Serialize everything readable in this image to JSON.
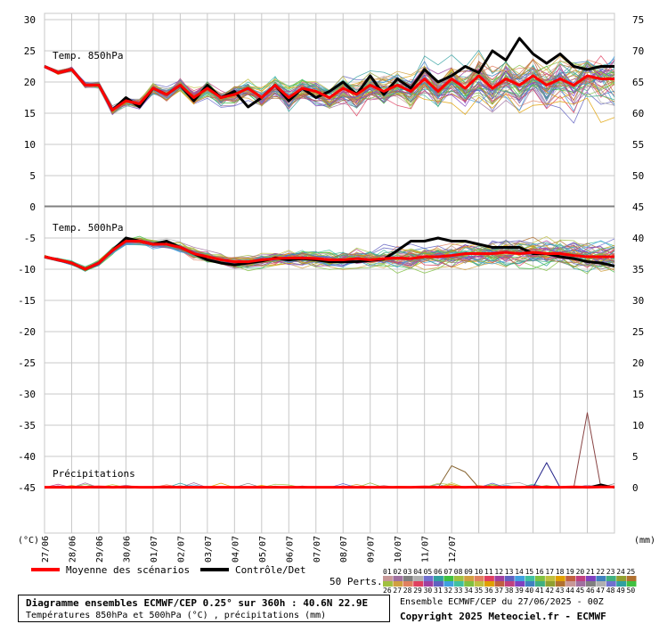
{
  "chart_data": {
    "type": "line",
    "x_labels": [
      "27/06",
      "28/06",
      "29/06",
      "30/06",
      "01/07",
      "02/07",
      "03/07",
      "04/07",
      "05/07",
      "06/07",
      "07/07",
      "08/07",
      "09/07",
      "10/07",
      "11/07",
      "12/07"
    ],
    "axis_unit_left": "(°C)",
    "axis_unit_right": "(mm)",
    "panels": [
      {
        "title": "Temp. 850hPa",
        "left_ticks": [
          30,
          25,
          20,
          15,
          10,
          5,
          0
        ],
        "right_ticks": [
          75,
          70,
          65,
          60,
          55,
          50
        ],
        "ylim": [
          0,
          30
        ],
        "series": [
          {
            "name": "Moyenne des scénarios",
            "color": "#ff0000",
            "values": [
              22.5,
              21.5,
              22.0,
              19.5,
              19.5,
              15.5,
              17.0,
              16.5,
              19.0,
              18.0,
              19.5,
              17.5,
              19.0,
              17.5,
              18.0,
              19.0,
              17.5,
              19.5,
              17.5,
              19.0,
              18.5,
              17.5,
              19.0,
              18.0,
              19.5,
              18.5,
              19.5,
              18.5,
              20.5,
              18.5,
              20.5,
              19.0,
              21.0,
              19.0,
              20.5,
              19.5,
              21.0,
              19.5,
              20.5,
              19.5,
              21.0,
              20.5,
              20.5
            ]
          },
          {
            "name": "Contrôle/Det",
            "color": "#000000",
            "values": [
              22.5,
              21.5,
              22.0,
              19.5,
              19.5,
              15.5,
              17.5,
              16.0,
              19.0,
              18.0,
              19.5,
              17.0,
              19.5,
              17.5,
              18.5,
              16.0,
              17.5,
              19.5,
              17.0,
              19.0,
              17.5,
              18.5,
              20.0,
              18.0,
              21.0,
              18.0,
              20.5,
              19.0,
              22.0,
              20.0,
              21.0,
              22.5,
              21.5,
              25.0,
              23.5,
              27.0,
              24.5,
              23.0,
              24.5,
              22.5,
              22.0,
              22.5,
              22.5
            ]
          }
        ]
      },
      {
        "title": "Temp. 500hPa",
        "left_ticks": [
          -5,
          -10,
          -15,
          -20,
          -25,
          -30,
          -35,
          -40,
          -45
        ],
        "right_ticks": [
          45,
          40,
          35,
          30,
          25,
          20,
          15,
          10,
          5,
          0
        ],
        "ylim": [
          -45,
          0
        ],
        "series": [
          {
            "name": "Moyenne des scénarios",
            "color": "#ff0000",
            "values": [
              -8.0,
              -8.5,
              -9.0,
              -10.0,
              -9.0,
              -7.0,
              -5.5,
              -5.5,
              -6.0,
              -6.0,
              -6.5,
              -7.5,
              -8.0,
              -8.5,
              -8.8,
              -8.8,
              -8.5,
              -8.3,
              -8.2,
              -8.2,
              -8.3,
              -8.5,
              -8.5,
              -8.3,
              -8.5,
              -8.3,
              -8.2,
              -8.3,
              -8.0,
              -8.0,
              -7.8,
              -7.5,
              -7.5,
              -7.5,
              -7.3,
              -7.5,
              -7.3,
              -7.5,
              -7.5,
              -7.8,
              -8.0,
              -8.0,
              -8.0
            ]
          },
          {
            "name": "Contrôle/Det",
            "color": "#000000",
            "values": [
              -8.0,
              -8.5,
              -9.0,
              -10.0,
              -9.0,
              -7.0,
              -5.0,
              -5.5,
              -6.0,
              -5.5,
              -6.5,
              -7.5,
              -8.5,
              -9.0,
              -9.3,
              -9.0,
              -8.7,
              -8.2,
              -8.5,
              -8.3,
              -8.5,
              -8.8,
              -8.8,
              -8.8,
              -8.6,
              -8.4,
              -7.0,
              -5.5,
              -5.5,
              -5.0,
              -5.5,
              -5.5,
              -6.0,
              -6.5,
              -6.5,
              -6.5,
              -7.5,
              -7.5,
              -8.0,
              -8.3,
              -8.8,
              -9.0,
              -9.5
            ]
          }
        ]
      },
      {
        "title": "Précipitations",
        "right_ticks": [
          15,
          10,
          5,
          0
        ],
        "ylim": [
          0,
          16
        ],
        "series": [
          {
            "name": "Moyenne des scénarios",
            "color": "#ff0000",
            "values": [
              0.05,
              0.05,
              0.05,
              0.05,
              0.1,
              0.05,
              0.1,
              0.05,
              0.05,
              0.1,
              0.05,
              0.05,
              0.05,
              0.05,
              0.05,
              0.05,
              0.05,
              0.05,
              0.05,
              0.05,
              0.05,
              0.05,
              0.05,
              0.05,
              0.05,
              0.05,
              0.05,
              0.05,
              0.1,
              0.05,
              0.1,
              0.05,
              0.1,
              0.05,
              0.05,
              0.05,
              0.1,
              0.05,
              0.05,
              0.1,
              0.05,
              0.1,
              0.1
            ]
          },
          {
            "name": "Contrôle/Det",
            "color": "#000000",
            "values": [
              0,
              0,
              0,
              0,
              0,
              0,
              0,
              0,
              0,
              0,
              0,
              0,
              0,
              0,
              0,
              0,
              0,
              0,
              0,
              0,
              0,
              0,
              0,
              0,
              0,
              0,
              0,
              0,
              0,
              0,
              0,
              0,
              0,
              0,
              0,
              0,
              0,
              0,
              0,
              0,
              0,
              0.5,
              0
            ]
          },
          {
            "name": "",
            "color": "#884444",
            "values": [
              0,
              0,
              0,
              0,
              0,
              0,
              0,
              0,
              0,
              0,
              0,
              0,
              0,
              0,
              0,
              0,
              0,
              0,
              0,
              0,
              0,
              0,
              0,
              0,
              0,
              0,
              0,
              0,
              0,
              0,
              0,
              0,
              0,
              0,
              0,
              0,
              0,
              0,
              0,
              0,
              12.0,
              0,
              0
            ]
          },
          {
            "name": "",
            "color": "#222288",
            "values": [
              0,
              0,
              0,
              0,
              0,
              0,
              0,
              0,
              0,
              0,
              0,
              0,
              0,
              0,
              0,
              0,
              0,
              0,
              0,
              0,
              0,
              0,
              0,
              0,
              0,
              0,
              0,
              0,
              0,
              0,
              0,
              0,
              0,
              0,
              0,
              0,
              0,
              4.0,
              0,
              0,
              0,
              0,
              0
            ]
          },
          {
            "name": "",
            "color": "#886633",
            "values": [
              0,
              0,
              0,
              0,
              0,
              0,
              0,
              0,
              0,
              0,
              0,
              0,
              0,
              0,
              0,
              0,
              0,
              0,
              0,
              0,
              0,
              0,
              0,
              0,
              0,
              0,
              0,
              0,
              0,
              0,
              3.5,
              2.5,
              0,
              0,
              0,
              0,
              0,
              0,
              0,
              0,
              0,
              0,
              0
            ]
          }
        ]
      }
    ],
    "legend": {
      "mean_label": "Moyenne des scénarios",
      "control_label": "Contrôle/Det",
      "perts_label": "50 Perts.",
      "member_codes_row1": [
        "01",
        "02",
        "03",
        "04",
        "05",
        "06",
        "07",
        "08",
        "09",
        "10",
        "11",
        "12",
        "13",
        "14",
        "15",
        "16",
        "17",
        "18",
        "19",
        "20",
        "21",
        "22",
        "23",
        "24",
        "25"
      ],
      "member_codes_row2": [
        "26",
        "27",
        "28",
        "29",
        "30",
        "31",
        "32",
        "33",
        "34",
        "35",
        "36",
        "37",
        "38",
        "39",
        "40",
        "41",
        "42",
        "43",
        "44",
        "45",
        "46",
        "47",
        "48",
        "49",
        "50"
      ],
      "member_colors": [
        "#c89898",
        "#a070a0",
        "#808080",
        "#b0b0b0",
        "#7070d0",
        "#30a0a0",
        "#40c040",
        "#a0c040",
        "#d0a040",
        "#e08060",
        "#e04060",
        "#a040a0",
        "#6060c0",
        "#40a0e0",
        "#40c0a0",
        "#80c040",
        "#c0c040",
        "#e0a000",
        "#c06040",
        "#c04080",
        "#8040c0",
        "#4080c0",
        "#40b080",
        "#90a030",
        "#b07030"
      ]
    }
  },
  "caption": {
    "line1": "Diagramme ensembles ECMWF/CEP 0.25° sur 360h : 40.6N 22.9E",
    "line2": "Températures 850hPa et 500hPa (°C) , précipitations (mm)"
  },
  "run_info": "Ensemble ECMWF/CEP du 27/06/2025 - 00Z",
  "copyright": "Copyright 2025 Meteociel.fr - ECMWF"
}
